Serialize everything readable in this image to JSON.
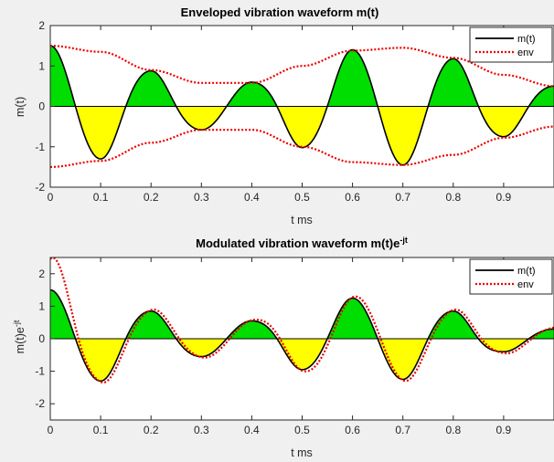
{
  "colors": {
    "background": "#f0f0f0",
    "axes": "#ffffff",
    "positive_fill": "#00dd00",
    "negative_fill": "#ffff00",
    "signal_line": "#000000",
    "envelope_line": "#ee0000",
    "zero_line": "#000000"
  },
  "chart_data": [
    {
      "type": "area",
      "title": "Enveloped vibration waveform m(t)",
      "title_sup": "",
      "xlabel": "t ms",
      "ylabel": "m(t)",
      "ylabel_sup": "",
      "xlim": [
        0,
        1
      ],
      "ylim": [
        -2,
        2
      ],
      "x_ticks": [
        0,
        0.1,
        0.2,
        0.3,
        0.4,
        0.5,
        0.6,
        0.7,
        0.8,
        0.9
      ],
      "x_tick_labels": [
        "0",
        "0.1",
        "0.2",
        "0.3",
        "0.4",
        "0.5",
        "0.6",
        "0.7",
        "0.8",
        "0.9"
      ],
      "y_ticks": [
        -2,
        -1,
        0,
        1,
        2
      ],
      "y_tick_labels": [
        "-2",
        "-1",
        "0",
        "1",
        "2"
      ],
      "legend": {
        "position": "top-right",
        "entries": [
          "m(t)",
          "env"
        ]
      },
      "fill": {
        "above_zero": "positive_fill",
        "below_zero": "negative_fill"
      },
      "series": [
        {
          "name": "m(t)",
          "style": "solid",
          "description": "rectified-lobe oscillation with zeros every 0.1 ms, peaks at 0.0, 0.1, 0.2, ...",
          "zero_crossings": [
            0.05,
            0.15,
            0.25,
            0.35,
            0.45,
            0.55,
            0.65,
            0.75,
            0.85,
            0.95
          ],
          "peaks": {
            "x": [
              0,
              0.1,
              0.2,
              0.3,
              0.4,
              0.5,
              0.6,
              0.7,
              0.8,
              0.9,
              1.0
            ],
            "y": [
              1.5,
              1.3,
              0.88,
              0.58,
              0.6,
              1.02,
              1.4,
              1.45,
              1.18,
              0.75,
              0.5
            ]
          }
        },
        {
          "name": "env",
          "style": "dotted",
          "x": [
            0,
            0.1,
            0.2,
            0.3,
            0.4,
            0.5,
            0.6,
            0.7,
            0.8,
            0.9,
            1.0
          ],
          "y": [
            1.5,
            1.35,
            0.9,
            0.58,
            0.58,
            1.0,
            1.38,
            1.45,
            1.2,
            0.78,
            0.5
          ]
        }
      ]
    },
    {
      "type": "area",
      "title": "Modulated vibration waveform m(t)e",
      "title_sup": "-jt",
      "xlabel": "t ms",
      "ylabel": "m(t)e",
      "ylabel_sup": "-jt",
      "xlim": [
        0,
        1
      ],
      "ylim": [
        -2.5,
        2.5
      ],
      "x_ticks": [
        0,
        0.1,
        0.2,
        0.3,
        0.4,
        0.5,
        0.6,
        0.7,
        0.8,
        0.9
      ],
      "x_tick_labels": [
        "0",
        "0.1",
        "0.2",
        "0.3",
        "0.4",
        "0.5",
        "0.6",
        "0.7",
        "0.8",
        "0.9"
      ],
      "y_ticks": [
        -2,
        -1,
        0,
        1,
        2
      ],
      "y_tick_labels": [
        "-2",
        "-1",
        "0",
        "1",
        "2"
      ],
      "legend": {
        "position": "top-right",
        "entries": [
          "m(t)",
          "env"
        ]
      },
      "fill": {
        "above_zero": "positive_fill",
        "below_zero": "negative_fill"
      },
      "series": [
        {
          "name": "m(t)",
          "style": "solid",
          "zero_crossings": [
            0.05,
            0.15,
            0.25,
            0.35,
            0.45,
            0.55,
            0.65,
            0.75,
            0.85,
            0.95
          ],
          "peaks": {
            "x": [
              0,
              0.1,
              0.2,
              0.3,
              0.4,
              0.5,
              0.6,
              0.7,
              0.8,
              0.9,
              1.0
            ],
            "y": [
              1.5,
              1.3,
              0.85,
              0.55,
              0.55,
              0.95,
              1.25,
              1.25,
              0.85,
              0.4,
              0.3
            ]
          }
        },
        {
          "name": "env",
          "style": "dotted",
          "description": "dotted trace shaped like modulated lobes, slightly shifted",
          "peaks": {
            "x": [
              0,
              0.1,
              0.2,
              0.3,
              0.4,
              0.5,
              0.6,
              0.7,
              0.8,
              0.9,
              1.0
            ],
            "y": [
              2.5,
              1.35,
              0.9,
              0.58,
              0.58,
              1.0,
              1.3,
              1.3,
              0.9,
              0.45,
              0.35
            ]
          }
        }
      ]
    }
  ]
}
